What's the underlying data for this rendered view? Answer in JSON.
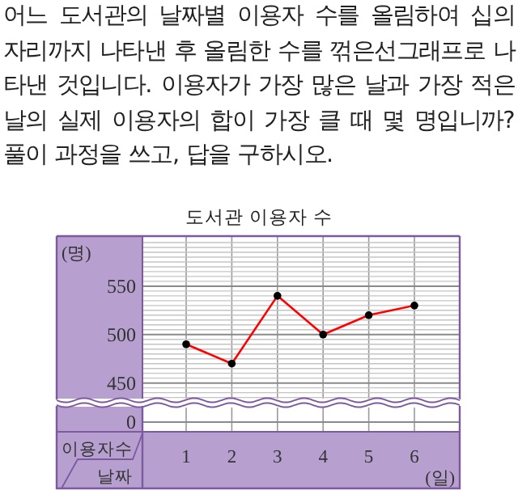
{
  "chart_data": {
    "type": "line",
    "title": "도서관 이용자 수",
    "annotations": [
      "어느 도서관의 날짜별 이용자 수를 올림하여 십의 자리까지 나타낸 후 올림한 수를 꺾은선그래프로 나타낸 것입니다. 이용자가 가장 많은 날과 가장 적은 날의 실제 이용자의 합이 가장 클 때 몇 명입니까? 풀이 과정을 쓰고, 답을 구하시오.",
      "0",
      "이용자수",
      "날짜"
    ],
    "ylabel": "(명)",
    "xlabel": "(일)",
    "categories": [
      "1",
      "2",
      "3",
      "4",
      "5",
      "6"
    ],
    "values": [
      490,
      470,
      540,
      500,
      520,
      530
    ],
    "color": "#ff0000",
    "marker": "circle",
    "ylim": [
      433,
      600
    ],
    "yticks": [
      {
        "value": 435,
        "label": null
      },
      {
        "value": 440,
        "label": null
      },
      {
        "value": 445,
        "label": null
      },
      450,
      {
        "value": 455,
        "label": null
      },
      {
        "value": 460,
        "label": null
      },
      {
        "value": 465,
        "label": null
      },
      {
        "value": 470,
        "label": null
      },
      {
        "value": 475,
        "label": null
      },
      {
        "value": 480,
        "label": null
      },
      {
        "value": 485,
        "label": null
      },
      {
        "value": 490,
        "label": null
      },
      {
        "value": 495,
        "label": null
      },
      500,
      {
        "value": 505,
        "label": null
      },
      {
        "value": 510,
        "label": null
      },
      {
        "value": 515,
        "label": null
      },
      {
        "value": 520,
        "label": null
      },
      {
        "value": 525,
        "label": null
      },
      {
        "value": 530,
        "label": null
      },
      {
        "value": 535,
        "label": null
      },
      {
        "value": 540,
        "label": null
      },
      {
        "value": 545,
        "label": null
      },
      550,
      {
        "value": 555,
        "label": null
      },
      {
        "value": 560,
        "label": null
      },
      {
        "value": 565,
        "label": null
      },
      {
        "value": 570,
        "label": null
      },
      {
        "value": 575,
        "label": null
      },
      {
        "value": 580,
        "label": null
      },
      {
        "value": 585,
        "label": null
      },
      {
        "value": 590,
        "label": null
      },
      {
        "value": 595,
        "label": null
      }
    ],
    "grid": true
  }
}
